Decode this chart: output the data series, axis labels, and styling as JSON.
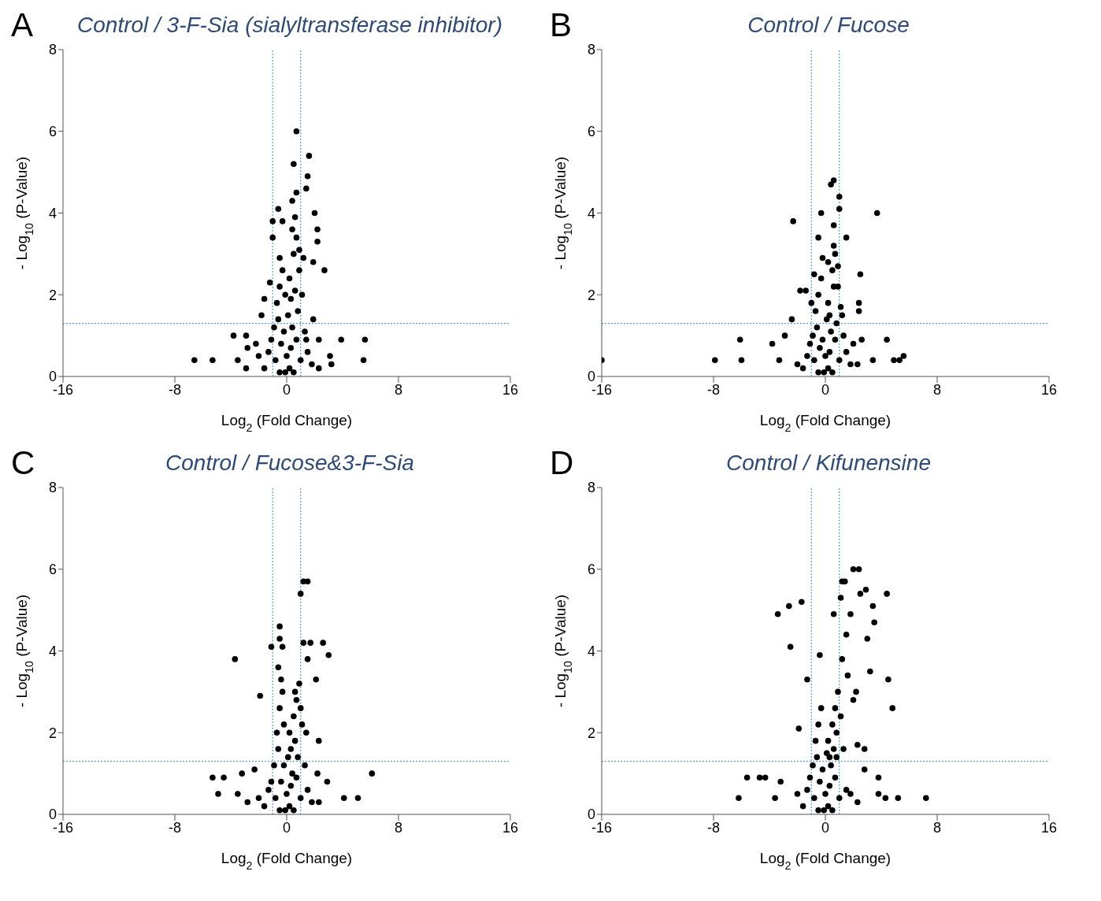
{
  "chart_data": [
    {
      "type": "scatter",
      "title": "Control / 3-F-Sia (sialyltransferase inhibitor)",
      "annotations": [
        "A"
      ],
      "xlabel": "Log$_{2}$ (Fold Change)",
      "ylabel": "- Log$_{10}$ (P-Value)",
      "color": "#000000",
      "marker": "circle",
      "grid": false,
      "xlim": [
        -16,
        16
      ],
      "xticks": [
        -16,
        -8,
        0,
        8,
        16
      ],
      "ylim": [
        0,
        8
      ],
      "yticks": [
        0,
        2,
        4,
        6,
        8
      ],
      "ref_lines": [
        {
          "axis": "x",
          "value": -1,
          "color": "#5b9bd5",
          "line_style": "dotted"
        },
        {
          "axis": "x",
          "value": 1,
          "color": "#5b9bd5",
          "line_style": "dotted"
        },
        {
          "axis": "y",
          "value": 1.3,
          "color": "#5b9bd5",
          "line_style": "dotted"
        }
      ],
      "x": [
        0.7,
        1.6,
        0.5,
        1.5,
        1.4,
        0.7,
        0.4,
        -0.6,
        2.0,
        -1.0,
        -0.3,
        2.2,
        2.2,
        -1.0,
        1.9,
        2.7,
        -0.5,
        -1.2,
        -1.6,
        -1.8,
        1.9,
        -3.8,
        -2.9,
        -6.6,
        -5.3,
        3.9,
        5.6,
        5.5,
        -3.5,
        -2.9,
        3.1,
        3.2,
        2.3,
        -2.2,
        -2.8,
        -0.9,
        -0.7,
        -0.5,
        -0.3,
        0.2,
        0.5,
        0.7,
        0.9,
        0.3,
        0.6,
        0.8,
        -0.6,
        -0.2,
        0.1,
        0.4,
        1.1,
        1.3,
        -1.1,
        -1.3,
        -0.8,
        -0.4,
        0,
        0.2,
        -0.1,
        0.3,
        0.7,
        1.0,
        1.5,
        1.8,
        -1.6,
        -2.0,
        2.3,
        0.5,
        -0.5,
        0.9,
        0.4,
        0.6,
        -0.1,
        1.2,
        1.4
      ],
      "values": [
        6.0,
        5.4,
        5.2,
        4.9,
        4.6,
        4.5,
        4.3,
        4.1,
        4.0,
        3.8,
        3.8,
        3.6,
        3.3,
        3.4,
        2.8,
        2.6,
        2.9,
        2.3,
        1.9,
        1.5,
        1.4,
        1.0,
        1.0,
        0.4,
        0.4,
        0.9,
        0.9,
        0.4,
        0.4,
        0.2,
        0.5,
        0.3,
        0.9,
        0.8,
        0.7,
        1.2,
        1.8,
        2.2,
        2.6,
        2.4,
        3.0,
        3.4,
        3.1,
        1.9,
        2.1,
        1.6,
        1.4,
        1.1,
        1.5,
        1.2,
        2.0,
        1.1,
        0.9,
        0.6,
        0.4,
        0.8,
        0.5,
        0.2,
        0.1,
        0.7,
        0.9,
        0.4,
        0.6,
        0.3,
        0.2,
        0.5,
        0.2,
        0.1,
        0.1,
        2.6,
        3.6,
        3.9,
        2.0,
        2.9,
        0.9
      ]
    },
    {
      "type": "scatter",
      "title": "Control / Fucose",
      "annotations": [
        "B"
      ],
      "xlabel": "Log$_{2}$ (Fold Change)",
      "ylabel": "- Log$_{10}$ (P-Value)",
      "color": "#000000",
      "marker": "circle",
      "grid": false,
      "xlim": [
        -16,
        16
      ],
      "xticks": [
        -16,
        -8,
        0,
        8,
        16
      ],
      "ylim": [
        0,
        8
      ],
      "yticks": [
        0,
        2,
        4,
        6,
        8
      ],
      "ref_lines": [
        {
          "axis": "x",
          "value": -1,
          "color": "#5b9bd5",
          "line_style": "dotted"
        },
        {
          "axis": "x",
          "value": 1,
          "color": "#5b9bd5",
          "line_style": "dotted"
        },
        {
          "axis": "y",
          "value": 1.3,
          "color": "#5b9bd5",
          "line_style": "dotted"
        }
      ],
      "x": [
        0.6,
        0.4,
        1.0,
        1.0,
        3.7,
        -2.3,
        -0.3,
        0.6,
        -0.5,
        1.5,
        -0.2,
        2.5,
        -1.8,
        -1.4,
        2.4,
        2.4,
        -2.4,
        -6.1,
        -7.9,
        -6.0,
        -3.8,
        -2.9,
        -3.3,
        4.4,
        5.6,
        5.3,
        4.9,
        2.6,
        3.4,
        2.0,
        -16,
        -0.9,
        -0.7,
        -0.5,
        -0.3,
        0.2,
        0.5,
        0.7,
        0.9,
        0.3,
        0.6,
        0.8,
        -0.6,
        -0.2,
        0.1,
        0.4,
        1.1,
        1.3,
        -1.1,
        -1.3,
        -0.8,
        -0.4,
        0,
        0.2,
        -0.1,
        0.3,
        0.7,
        1.0,
        1.5,
        1.8,
        -1.6,
        -2.0,
        2.3,
        0.5,
        -0.5,
        0.9,
        0.6,
        -0.8,
        0.2,
        1.2,
        -1.0
      ],
      "values": [
        4.8,
        4.7,
        4.4,
        4.1,
        4.0,
        3.8,
        4.0,
        3.7,
        3.4,
        3.4,
        2.9,
        2.5,
        2.1,
        2.1,
        1.8,
        1.6,
        1.4,
        0.9,
        0.4,
        0.4,
        0.8,
        1.0,
        0.4,
        0.9,
        0.5,
        0.4,
        0.4,
        0.9,
        0.4,
        0.8,
        0.4,
        1.0,
        1.6,
        2.0,
        2.4,
        1.8,
        2.6,
        3.0,
        2.7,
        1.5,
        2.2,
        1.3,
        1.2,
        0.9,
        1.4,
        1.1,
        1.7,
        1.0,
        0.8,
        0.5,
        0.4,
        0.7,
        0.5,
        0.2,
        0.1,
        0.6,
        0.9,
        0.4,
        0.6,
        0.3,
        0.2,
        0.3,
        0.3,
        0.1,
        0.1,
        2.2,
        3.2,
        2.5,
        2.8,
        1.5,
        1.8
      ]
    },
    {
      "type": "scatter",
      "title": "Control / Fucose&3-F-Sia",
      "annotations": [
        "C"
      ],
      "xlabel": "Log$_{2}$ (Fold Change)",
      "ylabel": "- Log$_{10}$ (P-Value)",
      "color": "#000000",
      "marker": "circle",
      "grid": false,
      "xlim": [
        -16,
        16
      ],
      "xticks": [
        -16,
        -8,
        0,
        8,
        16
      ],
      "ylim": [
        0,
        8
      ],
      "yticks": [
        0,
        2,
        4,
        6,
        8
      ],
      "ref_lines": [
        {
          "axis": "x",
          "value": -1,
          "color": "#5b9bd5",
          "line_style": "dotted"
        },
        {
          "axis": "x",
          "value": 1,
          "color": "#5b9bd5",
          "line_style": "dotted"
        },
        {
          "axis": "y",
          "value": 1.3,
          "color": "#5b9bd5",
          "line_style": "dotted"
        }
      ],
      "x": [
        1.2,
        1.5,
        1.0,
        -0.5,
        -0.5,
        -1.1,
        -0.3,
        -3.7,
        2.6,
        1.7,
        3.0,
        1.2,
        1.5,
        -1.9,
        2.1,
        2.3,
        -5.3,
        -4.5,
        -4.9,
        -3.2,
        6.1,
        5.1,
        4.1,
        2.9,
        2.2,
        -2.3,
        -3.5,
        -2.8,
        -0.9,
        -0.7,
        -0.5,
        -0.3,
        0.2,
        0.5,
        0.7,
        0.9,
        0.3,
        0.6,
        0.8,
        -0.6,
        -0.2,
        0.1,
        0.4,
        1.1,
        1.3,
        -1.1,
        -1.3,
        -0.8,
        -0.4,
        0,
        0.2,
        -0.1,
        0.3,
        0.7,
        1.0,
        1.5,
        1.8,
        -1.6,
        -2.0,
        2.3,
        0.5,
        -0.5,
        -0.6,
        -0.4,
        1.0,
        0.6,
        1.4,
        -0.2
      ],
      "values": [
        5.7,
        5.7,
        5.4,
        4.6,
        4.3,
        4.1,
        4.1,
        3.8,
        4.2,
        4.2,
        3.9,
        4.2,
        3.8,
        2.9,
        3.3,
        1.8,
        0.9,
        0.9,
        0.5,
        1.0,
        1.0,
        0.4,
        0.4,
        0.8,
        1.0,
        1.1,
        0.5,
        0.3,
        1.2,
        2.0,
        2.6,
        3.0,
        2.0,
        2.4,
        2.8,
        3.2,
        1.6,
        1.8,
        1.4,
        1.6,
        1.2,
        1.4,
        1.0,
        2.2,
        1.2,
        0.8,
        0.6,
        0.4,
        0.8,
        0.5,
        0.2,
        0.1,
        0.7,
        0.9,
        0.4,
        0.6,
        0.3,
        0.2,
        0.4,
        0.3,
        0.1,
        0.1,
        3.6,
        3.3,
        2.6,
        3.0,
        2.0,
        2.2
      ]
    },
    {
      "type": "scatter",
      "title": "Control / Kifunensine",
      "annotations": [
        "D"
      ],
      "xlabel": "Log$_{2}$ (Fold Change)",
      "ylabel": "- Log$_{10}$ (P-Value)",
      "color": "#000000",
      "marker": "circle",
      "grid": false,
      "xlim": [
        -16,
        16
      ],
      "xticks": [
        -16,
        -8,
        0,
        8,
        16
      ],
      "ylim": [
        0,
        8
      ],
      "yticks": [
        0,
        2,
        4,
        6,
        8
      ],
      "ref_lines": [
        {
          "axis": "x",
          "value": -1,
          "color": "#5b9bd5",
          "line_style": "dotted"
        },
        {
          "axis": "x",
          "value": 1,
          "color": "#5b9bd5",
          "line_style": "dotted"
        },
        {
          "axis": "y",
          "value": 1.3,
          "color": "#5b9bd5",
          "line_style": "dotted"
        }
      ],
      "x": [
        2.0,
        2.4,
        1.2,
        1.4,
        1.1,
        2.5,
        2.9,
        4.4,
        -3.4,
        -2.6,
        -1.7,
        -2.5,
        3.4,
        3.5,
        1.8,
        0.6,
        4.5,
        4.8,
        3.2,
        3.0,
        -0.4,
        -1.3,
        -1.9,
        -5.6,
        -4.7,
        -4.3,
        -6.2,
        -3.2,
        -3.6,
        7.2,
        5.2,
        4.3,
        3.8,
        3.8,
        2.8,
        2.8,
        2.3,
        -0.9,
        -0.7,
        -0.5,
        -0.3,
        0.2,
        0.5,
        0.7,
        0.9,
        0.3,
        0.6,
        0.8,
        -0.6,
        -0.2,
        0.1,
        0.4,
        1.1,
        1.3,
        -1.1,
        -1.3,
        -0.8,
        -0.4,
        0,
        0.2,
        -0.1,
        0.3,
        0.7,
        1.0,
        1.5,
        1.8,
        -1.6,
        -2.0,
        2.3,
        0.5,
        -0.5,
        1.6,
        2.0,
        1.2,
        0.8,
        1.5,
        2.2
      ],
      "values": [
        6.0,
        6.0,
        5.7,
        5.7,
        5.3,
        5.4,
        5.5,
        5.4,
        4.9,
        5.1,
        5.2,
        4.1,
        5.1,
        4.7,
        4.9,
        4.9,
        3.3,
        2.6,
        3.5,
        4.3,
        3.9,
        3.3,
        2.1,
        0.9,
        0.9,
        0.9,
        0.4,
        0.8,
        0.4,
        0.4,
        0.4,
        0.4,
        0.5,
        0.9,
        1.1,
        1.6,
        1.7,
        1.2,
        1.8,
        2.2,
        2.6,
        1.8,
        2.2,
        2.6,
        3.0,
        1.4,
        1.6,
        1.4,
        1.4,
        1.1,
        1.5,
        1.2,
        2.4,
        1.6,
        0.9,
        0.6,
        0.4,
        0.8,
        0.5,
        0.2,
        0.1,
        0.7,
        0.9,
        0.4,
        0.6,
        0.5,
        0.2,
        0.5,
        0.3,
        0.1,
        0.1,
        3.4,
        2.8,
        3.8,
        2.0,
        4.4,
        3.0
      ]
    }
  ]
}
